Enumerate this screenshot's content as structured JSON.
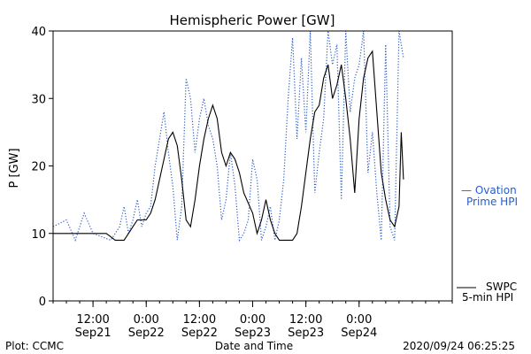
{
  "chart_data": {
    "type": "line",
    "title": "Hemispheric Power [GW]",
    "xlabel": "Date and Time",
    "ylabel": "P [GW]",
    "ylim": [
      0,
      40
    ],
    "yticks": [
      0,
      10,
      20,
      30,
      40
    ],
    "xlim": [
      "2020-09-21T03:00",
      "2020-09-24T21:00"
    ],
    "xticks": [
      {
        "time": "2020-09-21T12:00",
        "line1": "12:00",
        "line2": "Sep21"
      },
      {
        "time": "2020-09-22T00:00",
        "line1": "0:00",
        "line2": "Sep22"
      },
      {
        "time": "2020-09-22T12:00",
        "line1": "12:00",
        "line2": "Sep22"
      },
      {
        "time": "2020-09-23T00:00",
        "line1": "0:00",
        "line2": "Sep23"
      },
      {
        "time": "2020-09-23T12:00",
        "line1": "12:00",
        "line2": "Sep23"
      },
      {
        "time": "2020-09-24T00:00",
        "line1": "0:00",
        "line2": "Sep24"
      }
    ],
    "series": [
      {
        "name": "SWPC 5-min HPI",
        "legend_line1": "SWPC",
        "legend_line2": "5-min HPI",
        "color": "#000000",
        "style": "solid",
        "x": [
          "2020-09-21T03:00",
          "2020-09-21T12:00",
          "2020-09-21T15:00",
          "2020-09-21T17:00",
          "2020-09-21T18:00",
          "2020-09-21T19:00",
          "2020-09-21T20:00",
          "2020-09-21T21:00",
          "2020-09-21T22:00",
          "2020-09-22T00:00",
          "2020-09-22T01:00",
          "2020-09-22T02:00",
          "2020-09-22T03:00",
          "2020-09-22T04:00",
          "2020-09-22T05:00",
          "2020-09-22T06:00",
          "2020-09-22T07:00",
          "2020-09-22T08:00",
          "2020-09-22T09:00",
          "2020-09-22T10:00",
          "2020-09-22T11:00",
          "2020-09-22T12:00",
          "2020-09-22T13:00",
          "2020-09-22T14:00",
          "2020-09-22T15:00",
          "2020-09-22T16:00",
          "2020-09-22T17:00",
          "2020-09-22T18:00",
          "2020-09-22T19:00",
          "2020-09-22T20:00",
          "2020-09-22T21:00",
          "2020-09-22T22:00",
          "2020-09-23T00:00",
          "2020-09-23T01:00",
          "2020-09-23T02:00",
          "2020-09-23T03:00",
          "2020-09-23T04:00",
          "2020-09-23T05:00",
          "2020-09-23T06:00",
          "2020-09-23T07:00",
          "2020-09-23T08:00",
          "2020-09-23T09:00",
          "2020-09-23T10:00",
          "2020-09-23T11:00",
          "2020-09-23T12:00",
          "2020-09-23T13:00",
          "2020-09-23T14:00",
          "2020-09-23T15:00",
          "2020-09-23T16:00",
          "2020-09-23T17:00",
          "2020-09-23T18:00",
          "2020-09-23T19:00",
          "2020-09-23T20:00",
          "2020-09-23T21:00",
          "2020-09-23T22:00",
          "2020-09-23T23:00",
          "2020-09-24T00:00",
          "2020-09-24T01:00",
          "2020-09-24T02:00",
          "2020-09-24T03:00",
          "2020-09-24T04:00",
          "2020-09-24T05:00",
          "2020-09-24T06:00",
          "2020-09-24T07:00",
          "2020-09-24T08:00",
          "2020-09-24T09:00",
          "2020-09-24T09:30",
          "2020-09-24T10:00"
        ],
        "y": [
          10,
          10,
          10,
          9,
          9,
          9,
          10,
          11,
          12,
          12,
          13,
          15,
          18,
          21,
          24,
          25,
          23,
          18,
          12,
          11,
          15,
          20,
          24,
          27,
          29,
          27,
          22,
          20,
          22,
          21,
          19,
          16,
          13,
          10,
          12,
          15,
          12,
          10,
          9,
          9,
          9,
          9,
          10,
          14,
          19,
          24,
          28,
          29,
          33,
          35,
          30,
          32,
          35,
          30,
          24,
          16,
          27,
          33,
          36,
          37,
          28,
          19,
          15,
          12,
          11,
          14,
          25,
          18
        ]
      },
      {
        "name": "Ovation Prime HPI",
        "legend_line1": "— Ovation",
        "legend_line2": "Prime HPI",
        "color": "#2a5cc8",
        "style": "dotted",
        "x": [
          "2020-09-21T03:00",
          "2020-09-21T06:00",
          "2020-09-21T08:00",
          "2020-09-21T10:00",
          "2020-09-21T12:00",
          "2020-09-21T16:00",
          "2020-09-21T18:00",
          "2020-09-21T19:00",
          "2020-09-21T20:00",
          "2020-09-21T21:00",
          "2020-09-21T22:00",
          "2020-09-21T23:00",
          "2020-09-22T00:00",
          "2020-09-22T01:00",
          "2020-09-22T02:00",
          "2020-09-22T03:00",
          "2020-09-22T04:00",
          "2020-09-22T05:00",
          "2020-09-22T06:00",
          "2020-09-22T07:00",
          "2020-09-22T08:00",
          "2020-09-22T09:00",
          "2020-09-22T10:00",
          "2020-09-22T11:00",
          "2020-09-22T12:00",
          "2020-09-22T13:00",
          "2020-09-22T14:00",
          "2020-09-22T15:00",
          "2020-09-22T16:00",
          "2020-09-22T17:00",
          "2020-09-22T18:00",
          "2020-09-22T19:00",
          "2020-09-22T20:00",
          "2020-09-22T21:00",
          "2020-09-22T22:00",
          "2020-09-22T23:00",
          "2020-09-23T00:00",
          "2020-09-23T01:00",
          "2020-09-23T02:00",
          "2020-09-23T03:00",
          "2020-09-23T04:00",
          "2020-09-23T05:00",
          "2020-09-23T06:00",
          "2020-09-23T07:00",
          "2020-09-23T08:00",
          "2020-09-23T09:00",
          "2020-09-23T10:00",
          "2020-09-23T11:00",
          "2020-09-23T12:00",
          "2020-09-23T13:00",
          "2020-09-23T14:00",
          "2020-09-23T15:00",
          "2020-09-23T16:00",
          "2020-09-23T17:00",
          "2020-09-23T18:00",
          "2020-09-23T19:00",
          "2020-09-23T20:00",
          "2020-09-23T21:00",
          "2020-09-23T22:00",
          "2020-09-23T23:00",
          "2020-09-24T00:00",
          "2020-09-24T01:00",
          "2020-09-24T02:00",
          "2020-09-24T03:00",
          "2020-09-24T04:00",
          "2020-09-24T05:00",
          "2020-09-24T06:00",
          "2020-09-24T07:00",
          "2020-09-24T08:00",
          "2020-09-24T09:00",
          "2020-09-24T10:00"
        ],
        "y": [
          11,
          12,
          9,
          13,
          10,
          9,
          11,
          14,
          10,
          12,
          15,
          11,
          13,
          14,
          20,
          24,
          28,
          22,
          17,
          9,
          14,
          33,
          30,
          22,
          27,
          30,
          26,
          24,
          20,
          12,
          15,
          22,
          17,
          9,
          10,
          12,
          21,
          18,
          9,
          11,
          14,
          9,
          12,
          18,
          30,
          39,
          24,
          36,
          25,
          40,
          16,
          22,
          27,
          40,
          35,
          38,
          15,
          40,
          28,
          33,
          35,
          40,
          19,
          25,
          16,
          9,
          38,
          11,
          9,
          40,
          36
        ]
      }
    ],
    "grid": false
  },
  "footer": {
    "left": "Plot: CCMC",
    "center": "Date and Time",
    "right": "2020/09/24 06:25:25"
  }
}
